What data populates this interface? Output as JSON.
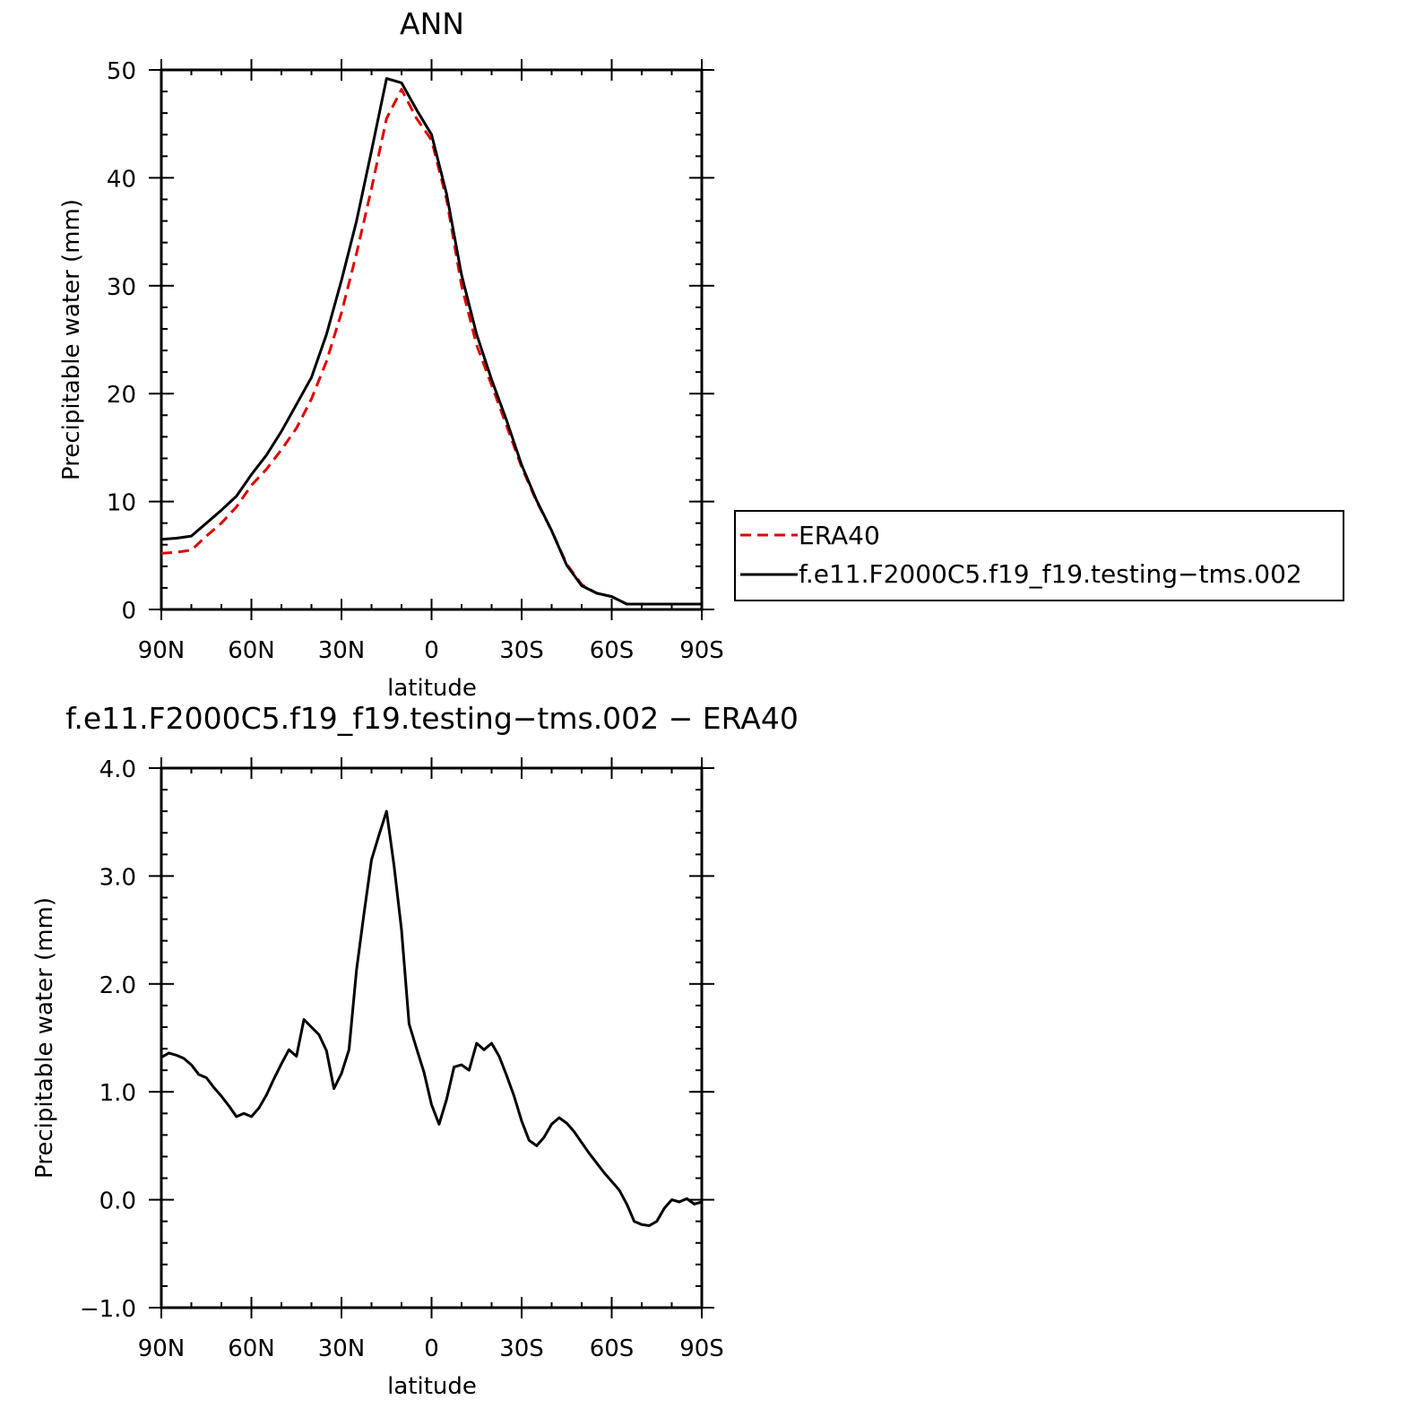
{
  "chart_data": [
    {
      "type": "line",
      "title": "ANN",
      "xlabel": "latitude",
      "ylabel": "Precipitable water (mm)",
      "ylim": [
        0,
        50
      ],
      "xlim": [
        90,
        -90
      ],
      "x_ticks": [
        90,
        60,
        30,
        0,
        -30,
        -60,
        -90
      ],
      "x_tick_labels": [
        "90N",
        "60N",
        "30N",
        "0",
        "30S",
        "60S",
        "90S"
      ],
      "y_ticks": [
        0,
        10,
        20,
        30,
        40,
        50
      ],
      "y_tick_labels": [
        "0",
        "10",
        "20",
        "30",
        "40",
        "50"
      ],
      "legend_position": "right",
      "series": [
        {
          "name": "ERA40",
          "color": "#e00000",
          "style": "dashed",
          "x": [
            90,
            85,
            80,
            75,
            70,
            65,
            60,
            55,
            50,
            45,
            40,
            35,
            30,
            25,
            20,
            15,
            10,
            5,
            0,
            -5,
            -10,
            -15,
            -20,
            -25,
            -30,
            -35,
            -40,
            -45,
            -50,
            -55,
            -60,
            -65,
            -70,
            -75,
            -80,
            -85,
            -90
          ],
          "values": [
            5.2,
            5.3,
            5.5,
            6.8,
            8.0,
            9.5,
            11.5,
            13.0,
            14.8,
            16.8,
            19.5,
            23.0,
            27.5,
            33.0,
            39.0,
            45.5,
            48.2,
            45.5,
            43.5,
            38.0,
            30.0,
            24.5,
            20.8,
            17.0,
            13.2,
            10.0,
            7.3,
            4.2,
            2.3,
            1.5,
            1.2,
            0.5,
            0.5,
            0.5,
            0.5,
            0.5,
            0.5
          ]
        },
        {
          "name": "f.e11.F2000C5.f19_f19.testing−tms.002",
          "color": "#000000",
          "style": "solid",
          "x": [
            90,
            85,
            80,
            75,
            70,
            65,
            60,
            55,
            50,
            45,
            40,
            35,
            30,
            25,
            20,
            15,
            10,
            5,
            0,
            -5,
            -10,
            -15,
            -20,
            -25,
            -30,
            -35,
            -40,
            -45,
            -50,
            -55,
            -60,
            -65,
            -70,
            -75,
            -80,
            -85,
            -90
          ],
          "values": [
            6.5,
            6.6,
            6.8,
            8.0,
            9.2,
            10.5,
            12.5,
            14.3,
            16.5,
            19.0,
            21.5,
            25.5,
            30.5,
            36.0,
            42.5,
            49.2,
            48.8,
            46.3,
            44.0,
            38.5,
            31.0,
            25.5,
            21.3,
            17.5,
            13.4,
            10.1,
            7.3,
            4.1,
            2.2,
            1.5,
            1.2,
            0.5,
            0.5,
            0.5,
            0.5,
            0.5,
            0.5
          ]
        }
      ]
    },
    {
      "type": "line",
      "title": "f.e11.F2000C5.f19_f19.testing−tms.002 − ERA40",
      "xlabel": "latitude",
      "ylabel": "Precipitable water (mm)",
      "ylim": [
        -1.0,
        4.0
      ],
      "xlim": [
        90,
        -90
      ],
      "x_ticks": [
        90,
        60,
        30,
        0,
        -30,
        -60,
        -90
      ],
      "x_tick_labels": [
        "90N",
        "60N",
        "30N",
        "0",
        "30S",
        "60S",
        "90S"
      ],
      "y_ticks": [
        -1.0,
        0.0,
        1.0,
        2.0,
        3.0,
        4.0
      ],
      "y_tick_labels": [
        "−1.0",
        "0.0",
        "1.0",
        "2.0",
        "3.0",
        "4.0"
      ],
      "series": [
        {
          "color": "#000000",
          "style": "solid",
          "x": [
            90,
            87.5,
            85,
            82.5,
            80,
            77.5,
            75,
            72.5,
            70,
            67.5,
            65,
            62.5,
            60,
            57.5,
            55,
            52.5,
            50,
            47.5,
            45,
            42.5,
            40,
            37.5,
            35,
            32.5,
            30,
            27.5,
            25,
            22.5,
            20,
            17.5,
            15,
            12.5,
            10,
            7.5,
            5,
            2.5,
            0,
            -2.5,
            -5,
            -7.5,
            -10,
            -12.5,
            -15,
            -17.5,
            -20,
            -22.5,
            -25,
            -27.5,
            -30,
            -32.5,
            -35,
            -37.5,
            -40,
            -42.5,
            -45,
            -47.5,
            -50,
            -52.5,
            -55,
            -57.5,
            -60,
            -62.5,
            -65,
            -67.5,
            -70,
            -72.5,
            -75,
            -77.5,
            -80,
            -82.5,
            -85,
            -87.5,
            -90
          ],
          "values": [
            1.32,
            1.36,
            1.34,
            1.31,
            1.25,
            1.16,
            1.13,
            1.04,
            0.96,
            0.87,
            0.77,
            0.8,
            0.77,
            0.85,
            0.97,
            1.12,
            1.26,
            1.39,
            1.33,
            1.67,
            1.6,
            1.53,
            1.38,
            1.03,
            1.17,
            1.39,
            2.13,
            2.65,
            3.15,
            3.38,
            3.6,
            3.1,
            2.5,
            1.63,
            1.4,
            1.18,
            0.88,
            0.7,
            0.93,
            1.23,
            1.25,
            1.2,
            1.45,
            1.39,
            1.45,
            1.33,
            1.15,
            0.96,
            0.73,
            0.55,
            0.5,
            0.58,
            0.7,
            0.76,
            0.71,
            0.63,
            0.53,
            0.43,
            0.34,
            0.25,
            0.17,
            0.09,
            -0.04,
            -0.2,
            -0.23,
            -0.24,
            -0.2,
            -0.08,
            0.0,
            -0.02,
            0.01,
            -0.04,
            -0.02
          ]
        }
      ]
    }
  ],
  "legend": {
    "items": [
      {
        "label": "ERA40",
        "color": "#e00000",
        "style": "dashed"
      },
      {
        "label": "f.e11.F2000C5.f19_f19.testing−tms.002",
        "color": "#000000",
        "style": "solid"
      }
    ]
  }
}
